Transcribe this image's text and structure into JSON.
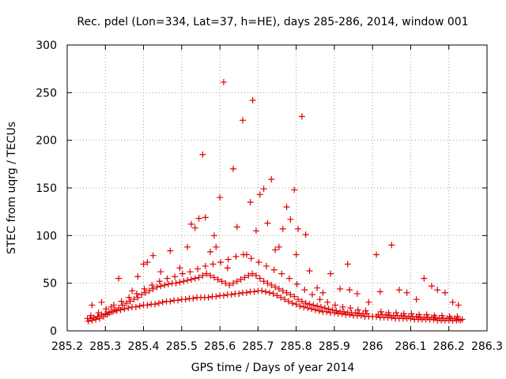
{
  "chart_data": {
    "type": "scatter",
    "title": "Rec. pdel (Lon=334, Lat=37, h=HE), days 285-286, 2014, window 001",
    "xlabel": "GPS time / Days of year 2014",
    "ylabel": "STEC from uqrg / TECUs",
    "xlim": [
      285.2,
      286.3
    ],
    "ylim": [
      0,
      300
    ],
    "xticks": [
      285.2,
      285.3,
      285.4,
      285.5,
      285.6,
      285.7,
      285.8,
      285.9,
      286,
      286.1,
      286.2,
      286.3
    ],
    "xtick_labels": [
      "285.2",
      "285.3",
      "285.4",
      "285.5",
      "285.6",
      "285.7",
      "285.8",
      "285.9",
      "286",
      "286.1",
      "286.2",
      "286.3"
    ],
    "yticks": [
      0,
      50,
      100,
      150,
      200,
      250,
      300
    ],
    "ytick_labels": [
      "0",
      "50",
      "100",
      "150",
      "200",
      "250",
      "300"
    ],
    "grid": true,
    "marker": "plus",
    "color": "#e00000",
    "series": [
      {
        "x": [
          285.253,
          285.26,
          285.27,
          285.28,
          285.29,
          285.3,
          285.31,
          285.32,
          285.33,
          285.34,
          285.35,
          285.36,
          285.37,
          285.38,
          285.39,
          285.4,
          285.41,
          285.42,
          285.43,
          285.44,
          285.45,
          285.46,
          285.47,
          285.48,
          285.49,
          285.5,
          285.51,
          285.52,
          285.53,
          285.54,
          285.55,
          285.56,
          285.57,
          285.58,
          285.59,
          285.6,
          285.61,
          285.62,
          285.63,
          285.64,
          285.65,
          285.66,
          285.67,
          285.68,
          285.69,
          285.7,
          285.71,
          285.72,
          285.73,
          285.74,
          285.75,
          285.76,
          285.77,
          285.78,
          285.79,
          285.8,
          285.81,
          285.82,
          285.83,
          285.84,
          285.85,
          285.86,
          285.87,
          285.88,
          285.89,
          285.9,
          285.91,
          285.92,
          285.93,
          285.94,
          285.95,
          285.96,
          285.97,
          285.98,
          285.99,
          286.0,
          286.01,
          286.02,
          286.03,
          286.04,
          286.05,
          286.06,
          286.07,
          286.08,
          286.09,
          286.1,
          286.11,
          286.12,
          286.13,
          286.14,
          286.15,
          286.16,
          286.17,
          286.18,
          286.19,
          286.2,
          286.21,
          286.22,
          286.23
        ],
        "y": [
          13,
          13,
          14,
          15,
          17,
          18,
          19,
          20,
          21,
          22,
          23,
          24,
          25,
          25,
          26,
          27,
          27,
          28,
          28,
          29,
          30,
          31,
          31,
          32,
          32,
          33,
          33,
          34,
          34,
          35,
          35,
          35,
          35,
          36,
          36,
          37,
          37,
          38,
          38,
          39,
          39,
          40,
          40,
          41,
          41,
          42,
          42,
          41,
          40,
          39,
          37,
          35,
          33,
          31,
          29,
          28,
          26,
          25,
          24,
          23,
          22,
          21,
          20,
          20,
          19,
          19,
          18,
          18,
          17,
          17,
          16,
          16,
          16,
          15,
          15,
          15,
          15,
          14,
          14,
          14,
          14,
          13,
          13,
          13,
          13,
          13,
          12,
          12,
          12,
          12,
          12,
          12,
          11,
          11,
          11,
          11,
          11,
          11,
          11
        ]
      },
      {
        "x": [
          285.255,
          285.265,
          285.275,
          285.285,
          285.295,
          285.305,
          285.315,
          285.325,
          285.335,
          285.345,
          285.355,
          285.365,
          285.375,
          285.385,
          285.395,
          285.405,
          285.415,
          285.425,
          285.435,
          285.445,
          285.455,
          285.465,
          285.475,
          285.485,
          285.495,
          285.505,
          285.515,
          285.525,
          285.535,
          285.545,
          285.555,
          285.565,
          285.575,
          285.585,
          285.595,
          285.605,
          285.615,
          285.625,
          285.635,
          285.645,
          285.655,
          285.665,
          285.675,
          285.685,
          285.695,
          285.705,
          285.715,
          285.725,
          285.735,
          285.745,
          285.755,
          285.765,
          285.775,
          285.785,
          285.795,
          285.805,
          285.815,
          285.825,
          285.835,
          285.845,
          285.855,
          285.865,
          285.875,
          285.885,
          285.895,
          285.905,
          285.915,
          285.925,
          285.935,
          285.945,
          285.955,
          285.965,
          285.975,
          285.985,
          286.015,
          286.025,
          286.035,
          286.045,
          286.055,
          286.065,
          286.075,
          286.085,
          286.095,
          286.105,
          286.115,
          286.125,
          286.135,
          286.145,
          286.155,
          286.165,
          286.175,
          286.185,
          286.195,
          286.205,
          286.215,
          286.225,
          286.235
        ],
        "y": [
          10,
          11,
          12,
          13,
          15,
          17,
          20,
          22,
          24,
          27,
          29,
          31,
          33,
          35,
          38,
          40,
          42,
          44,
          46,
          47,
          48,
          49,
          50,
          50,
          51,
          52,
          53,
          54,
          55,
          56,
          58,
          60,
          58,
          56,
          54,
          52,
          50,
          48,
          50,
          52,
          54,
          56,
          58,
          60,
          58,
          55,
          52,
          50,
          48,
          46,
          44,
          42,
          40,
          38,
          36,
          33,
          31,
          29,
          28,
          27,
          26,
          25,
          24,
          23,
          22,
          21,
          20,
          20,
          19,
          19,
          19,
          18,
          18,
          18,
          17,
          17,
          17,
          16,
          16,
          16,
          16,
          15,
          15,
          15,
          15,
          14,
          14,
          14,
          14,
          14,
          13,
          13,
          13,
          13,
          13,
          12,
          12
        ]
      },
      {
        "x": [
          285.262,
          285.282,
          285.302,
          285.322,
          285.342,
          285.362,
          285.382,
          285.402,
          285.422,
          285.442,
          285.462,
          285.482,
          285.502,
          285.522,
          285.542,
          285.562,
          285.582,
          285.602,
          285.622,
          285.642,
          285.662,
          285.682,
          285.702,
          285.722,
          285.742,
          285.762,
          285.782,
          285.802,
          285.822,
          285.842,
          285.862,
          285.882,
          285.902,
          285.922,
          285.942,
          285.962,
          285.982,
          286.022,
          286.042,
          286.062,
          286.082,
          286.102,
          286.122,
          286.142,
          286.162,
          286.182,
          286.202,
          286.222
        ],
        "y": [
          16,
          19,
          23,
          27,
          31,
          35,
          39,
          44,
          48,
          52,
          55,
          57,
          60,
          62,
          65,
          68,
          70,
          72,
          75,
          78,
          80,
          76,
          72,
          68,
          64,
          60,
          55,
          49,
          43,
          38,
          33,
          30,
          27,
          25,
          24,
          22,
          21,
          20,
          19,
          19,
          18,
          18,
          17,
          17,
          16,
          16,
          15,
          15
        ]
      },
      {
        "x": [
          285.265,
          285.29,
          285.315,
          285.335,
          285.37,
          285.385,
          285.4,
          285.41,
          285.425,
          285.445,
          285.47,
          285.495,
          285.515,
          285.525,
          285.535,
          285.545,
          285.555,
          285.562,
          285.575,
          285.585,
          285.59,
          285.6,
          285.61,
          285.62,
          285.635,
          285.645,
          285.66,
          285.67,
          285.68,
          285.686,
          285.695,
          285.705,
          285.715,
          285.725,
          285.735,
          285.745,
          285.755,
          285.765,
          285.775,
          285.785,
          285.795,
          285.8,
          285.805,
          285.815,
          285.825,
          285.835,
          285.855,
          285.87,
          285.89,
          285.915,
          285.935,
          285.94,
          285.96,
          285.99,
          286.01,
          286.02,
          286.05,
          286.07,
          286.09,
          286.115,
          286.135,
          286.155,
          286.17,
          286.19,
          286.21,
          286.225
        ],
        "y": [
          27,
          30,
          25,
          55,
          42,
          57,
          70,
          72,
          79,
          62,
          84,
          66,
          88,
          112,
          108,
          118,
          185,
          119,
          83,
          100,
          88,
          140,
          261,
          66,
          170,
          109,
          221,
          80,
          135,
          242,
          105,
          143,
          149,
          113,
          159,
          85,
          88,
          107,
          130,
          117,
          148,
          80,
          107,
          225,
          101,
          63,
          45,
          40,
          60,
          44,
          70,
          43,
          39,
          30,
          80,
          41,
          90,
          43,
          40,
          33,
          55,
          47,
          43,
          40,
          30,
          27
        ]
      }
    ]
  }
}
